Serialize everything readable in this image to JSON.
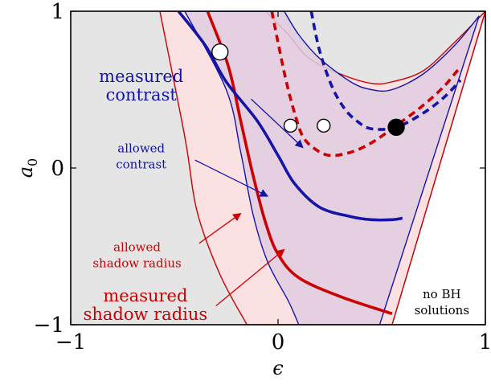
{
  "chart_data": {
    "type": "area",
    "xlabel": "ϵ",
    "ylabel": "a0",
    "xlim": [
      -1,
      1
    ],
    "ylim": [
      -1,
      1
    ],
    "x_ticks": [
      {
        "value": -1,
        "label": "−1"
      },
      {
        "value": 0,
        "label": "0"
      },
      {
        "value": 1,
        "label": "1"
      }
    ],
    "y_ticks": [
      {
        "value": -1,
        "label": "−1"
      },
      {
        "value": 0,
        "label": "0"
      },
      {
        "value": 1,
        "label": "1"
      }
    ],
    "colors": {
      "background": "#e5e5e5",
      "shadow": "#cc0000",
      "shadow_fill": "#fbe1e1",
      "contrast": "#1414a8",
      "overlap_fill": "#e0cce0",
      "frame": "#000000"
    },
    "regions": [
      {
        "id": "no-bh",
        "points": [
          [
            0.55,
            -1
          ],
          [
            1,
            1
          ],
          [
            1,
            -1
          ]
        ]
      },
      {
        "id": "allowed-shadow-radius",
        "boundaries": {
          "left": [
            [
              -0.57,
              1
            ],
            [
              -0.45,
              0.2
            ],
            [
              -0.39,
              -0.28
            ],
            [
              -0.28,
              -0.68
            ],
            [
              -0.15,
              -1
            ]
          ],
          "right": [
            [
              -0.06,
              1
            ],
            [
              0.05,
              0.85
            ],
            [
              0.15,
              0.7
            ],
            [
              0.3,
              0.6
            ],
            [
              0.45,
              0.54
            ],
            [
              0.55,
              0.55
            ],
            [
              0.7,
              0.62
            ],
            [
              0.85,
              0.8
            ],
            [
              1,
              1
            ]
          ],
          "bottom": [
            [
              -0.15,
              -1
            ],
            [
              0.55,
              -1
            ]
          ]
        }
      },
      {
        "id": "allowed-contrast",
        "boundaries": {
          "left": [
            [
              -0.45,
              1
            ],
            [
              -0.25,
              0.5
            ],
            [
              -0.18,
              0.1
            ],
            [
              -0.12,
              -0.3
            ],
            [
              -0.05,
              -0.6
            ],
            [
              0.05,
              -0.85
            ],
            [
              0.1,
              -1
            ]
          ],
          "right": [
            [
              0.03,
              1
            ],
            [
              0.1,
              0.85
            ],
            [
              0.2,
              0.7
            ],
            [
              0.35,
              0.55
            ],
            [
              0.45,
              0.5
            ],
            [
              0.55,
              0.5
            ],
            [
              0.7,
              0.6
            ],
            [
              0.85,
              0.78
            ],
            [
              0.97,
              0.97
            ]
          ],
          "bottom": [
            [
              0.1,
              -1
            ],
            [
              0.49,
              -1
            ]
          ]
        }
      }
    ],
    "series": [
      {
        "name": "measured shadow radius",
        "style": "solid",
        "color": "#cc0000",
        "points": [
          [
            -0.34,
            1
          ],
          [
            -0.24,
            0.65
          ],
          [
            -0.18,
            0.3
          ],
          [
            -0.12,
            -0.05
          ],
          [
            -0.06,
            -0.35
          ],
          [
            0,
            -0.55
          ],
          [
            0.1,
            -0.7
          ],
          [
            0.3,
            -0.82
          ],
          [
            0.55,
            -0.93
          ]
        ]
      },
      {
        "name": "measured contrast",
        "style": "solid",
        "color": "#1414a8",
        "points": [
          [
            -0.48,
            1
          ],
          [
            -0.35,
            0.78
          ],
          [
            -0.25,
            0.55
          ],
          [
            -0.1,
            0.3
          ],
          [
            0,
            0.08
          ],
          [
            0.08,
            -0.1
          ],
          [
            0.2,
            -0.25
          ],
          [
            0.35,
            -0.31
          ],
          [
            0.45,
            -0.33
          ],
          [
            0.55,
            -0.33
          ],
          [
            0.6,
            -0.32
          ]
        ]
      },
      {
        "name": "measured shadow radius",
        "style": "dashed",
        "color": "#cc0000",
        "points": [
          [
            -0.03,
            1
          ],
          [
            0,
            0.8
          ],
          [
            0.04,
            0.55
          ],
          [
            0.08,
            0.35
          ],
          [
            0.12,
            0.2
          ],
          [
            0.18,
            0.12
          ],
          [
            0.25,
            0.08
          ],
          [
            0.35,
            0.1
          ],
          [
            0.45,
            0.16
          ],
          [
            0.57,
            0.27
          ],
          [
            0.7,
            0.4
          ],
          [
            0.8,
            0.52
          ],
          [
            0.87,
            0.63
          ]
        ]
      },
      {
        "name": "measured contrast",
        "style": "dashed",
        "color": "#1414a8",
        "points": [
          [
            0.16,
            1
          ],
          [
            0.2,
            0.75
          ],
          [
            0.26,
            0.52
          ],
          [
            0.32,
            0.38
          ],
          [
            0.38,
            0.3
          ],
          [
            0.45,
            0.25
          ],
          [
            0.57,
            0.26
          ],
          [
            0.7,
            0.35
          ],
          [
            0.8,
            0.45
          ],
          [
            0.88,
            0.56
          ]
        ]
      }
    ],
    "markers": [
      {
        "x": -0.28,
        "y": 0.74,
        "fill": "open",
        "size": "large"
      },
      {
        "x": 0.06,
        "y": 0.27,
        "fill": "open",
        "size": "small"
      },
      {
        "x": 0.22,
        "y": 0.27,
        "fill": "open",
        "size": "small"
      },
      {
        "x": 0.57,
        "y": 0.26,
        "fill": "filled",
        "size": "large"
      }
    ],
    "annotations": [
      {
        "id": "measured-contrast",
        "lines": [
          "measured",
          "contrast"
        ],
        "color": "#1414a8",
        "size": "large",
        "anchor": [
          -0.66,
          0.55
        ],
        "arrow_from": [
          -0.13,
          0.44
        ],
        "arrow_to": [
          0.12,
          0.13
        ]
      },
      {
        "id": "allowed-contrast",
        "lines": [
          "allowed",
          "contrast"
        ],
        "color": "#1414a8",
        "size": "small",
        "anchor": [
          -0.66,
          0.1
        ],
        "arrow_from": [
          -0.4,
          0.05
        ],
        "arrow_to": [
          -0.05,
          -0.18
        ]
      },
      {
        "id": "allowed-shadow-radius",
        "lines": [
          "allowed",
          "shadow radius"
        ],
        "color": "#cc0000",
        "size": "small",
        "anchor": [
          -0.68,
          -0.53
        ],
        "arrow_from": [
          -0.38,
          -0.48
        ],
        "arrow_to": [
          -0.18,
          -0.29
        ]
      },
      {
        "id": "measured-shadow-radius",
        "lines": [
          "measured",
          "shadow radius"
        ],
        "color": "#cc0000",
        "size": "large",
        "anchor": [
          -0.64,
          -0.85
        ],
        "arrow_from": [
          -0.3,
          -0.88
        ],
        "arrow_to": [
          0.03,
          -0.52
        ]
      },
      {
        "id": "no-bh-solutions",
        "lines": [
          "no BH",
          "solutions"
        ],
        "color": "#000000",
        "size": "small",
        "anchor": [
          0.79,
          -0.83
        ]
      }
    ]
  }
}
